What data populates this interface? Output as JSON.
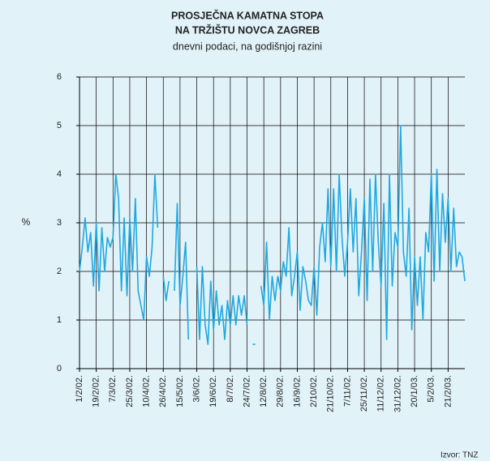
{
  "chart_data": {
    "type": "line",
    "title": [
      "PROSJEČNA KAMATNA STOPA",
      "NA TRŽIŠTU NOVCA ZAGREB"
    ],
    "subtitle": "dnevni podaci, na godišnjoj razini",
    "ylabel": "%",
    "source": "Izvor: TNZ",
    "categories": [
      "1/2/02.",
      null,
      null,
      null,
      null,
      null,
      "19/2/02.",
      null,
      null,
      null,
      null,
      null,
      "7/3/02.",
      null,
      null,
      null,
      null,
      null,
      "25/3/02.",
      null,
      null,
      null,
      null,
      null,
      "10/4/02.",
      null,
      null,
      null,
      null,
      null,
      "26/4/02.",
      null,
      null,
      null,
      null,
      null,
      "15/5/02.",
      null,
      null,
      null,
      null,
      null,
      "3/6/02.",
      null,
      null,
      null,
      null,
      null,
      "19/6/02.",
      null,
      null,
      null,
      null,
      null,
      "8/7/02.",
      null,
      null,
      null,
      null,
      null,
      "24/7/02.",
      null,
      null,
      null,
      null,
      null,
      "12/8/02.",
      null,
      null,
      null,
      null,
      null,
      "29/8/02.",
      null,
      null,
      null,
      null,
      null,
      "16/9/02.",
      null,
      null,
      null,
      null,
      null,
      "2/10/02.",
      null,
      null,
      null,
      null,
      null,
      "21/10/02.",
      null,
      null,
      null,
      null,
      null,
      "7/11/02.",
      null,
      null,
      null,
      null,
      null,
      "25/11/02.",
      null,
      null,
      null,
      null,
      null,
      "11/12/02.",
      null,
      null,
      null,
      null,
      null,
      "31/12/02.",
      null,
      null,
      null,
      null,
      null,
      "20/1/03.",
      null,
      null,
      null,
      null,
      null,
      "5/2/03.",
      null,
      null,
      null,
      null,
      null,
      "21/2/03.",
      null,
      null,
      null,
      null,
      null,
      null
    ],
    "series": [
      {
        "name": "Kamatna stopa",
        "color": "#1fa9e1",
        "values": [
          2.0,
          2.5,
          3.1,
          2.4,
          2.8,
          1.7,
          3.0,
          1.6,
          2.9,
          2.0,
          2.7,
          2.5,
          2.7,
          4.0,
          3.5,
          1.6,
          3.1,
          1.5,
          3.1,
          2.0,
          3.5,
          1.6,
          1.3,
          1.0,
          2.3,
          1.9,
          2.5,
          4.0,
          2.9,
          null,
          1.9,
          1.4,
          1.8,
          null,
          1.6,
          3.4,
          1.3,
          1.9,
          2.6,
          0.6,
          null,
          null,
          2.1,
          0.6,
          2.1,
          0.9,
          0.5,
          1.8,
          0.8,
          1.6,
          0.9,
          1.3,
          0.6,
          1.4,
          0.9,
          1.5,
          0.9,
          1.5,
          1.1,
          1.5,
          0.9,
          null,
          0.5,
          0.5,
          null,
          1.7,
          1.3,
          2.6,
          1.0,
          1.9,
          1.4,
          1.9,
          1.6,
          2.2,
          1.9,
          2.9,
          1.5,
          1.9,
          2.4,
          1.2,
          2.1,
          1.8,
          1.4,
          1.3,
          2.1,
          1.1,
          2.5,
          3.0,
          2.2,
          3.7,
          2.1,
          3.7,
          2.0,
          4.0,
          2.7,
          1.9,
          2.6,
          3.7,
          2.4,
          3.5,
          1.5,
          2.4,
          3.5,
          1.4,
          3.9,
          2.0,
          4.0,
          2.6,
          1.7,
          3.4,
          0.6,
          4.0,
          1.7,
          2.8,
          2.5,
          5.0,
          2.4,
          1.9,
          3.3,
          0.8,
          2.3,
          1.3,
          2.3,
          1.0,
          2.8,
          2.4,
          4.0,
          1.8,
          4.1,
          2.0,
          3.6,
          2.6,
          3.5,
          2.0,
          3.3,
          2.1,
          2.4,
          2.3,
          1.8
        ]
      }
    ],
    "ylim": [
      0,
      6
    ],
    "yticks": [
      0,
      1,
      2,
      3,
      4,
      5,
      6
    ],
    "grid": true
  }
}
